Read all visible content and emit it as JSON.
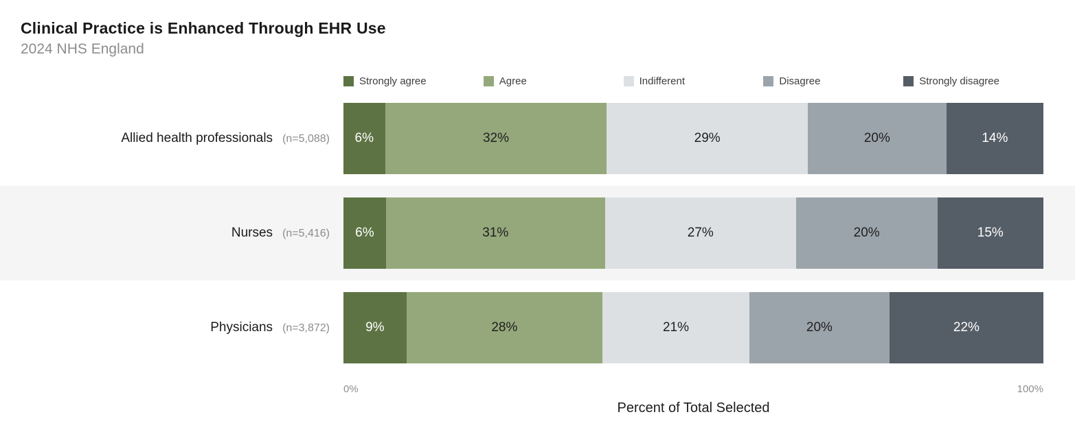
{
  "header": {
    "title": "Clinical Practice is Enhanced Through EHR Use",
    "subtitle": "2024 NHS England"
  },
  "chart_data": {
    "type": "bar",
    "stacked": true,
    "orientation": "horizontal",
    "title": "Clinical Practice is Enhanced Through EHR Use",
    "subtitle": "2024 NHS England",
    "xlabel": "Percent of Total Selected",
    "xlim": [
      0,
      100
    ],
    "x_tick_labels": [
      "0%",
      "100%"
    ],
    "legend_position": "top",
    "grid": false,
    "series": [
      {
        "name": "Strongly agree",
        "color": "#5d7344",
        "label_color": "#ffffff"
      },
      {
        "name": "Agree",
        "color": "#95a87b",
        "label_color": "#1f1f1f"
      },
      {
        "name": "Indifferent",
        "color": "#dde0e3",
        "label_color": "#1f1f1f"
      },
      {
        "name": "Disagree",
        "color": "#9ca4ab",
        "label_color": "#1f1f1f"
      },
      {
        "name": "Strongly disagree",
        "color": "#555d66",
        "label_color": "#ffffff"
      }
    ],
    "categories": [
      "Allied health professionals",
      "Nurses",
      "Physicians"
    ],
    "rows": [
      {
        "category": "Allied health professionals",
        "n_label": "(n=5,088)",
        "values": [
          6,
          32,
          29,
          20,
          14
        ],
        "labels": [
          "6%",
          "32%",
          "29%",
          "20%",
          "14%"
        ]
      },
      {
        "category": "Nurses",
        "n_label": "(n=5,416)",
        "values": [
          6,
          31,
          27,
          20,
          15
        ],
        "labels": [
          "6%",
          "31%",
          "27%",
          "20%",
          "15%"
        ]
      },
      {
        "category": "Physicians",
        "n_label": "(n=3,872)",
        "values": [
          9,
          28,
          21,
          20,
          22
        ],
        "labels": [
          "9%",
          "28%",
          "21%",
          "20%",
          "22%"
        ]
      }
    ],
    "band_color": "#f5f5f5"
  },
  "axis": {
    "min_label": "0%",
    "max_label": "100%",
    "title": "Percent of Total Selected"
  }
}
